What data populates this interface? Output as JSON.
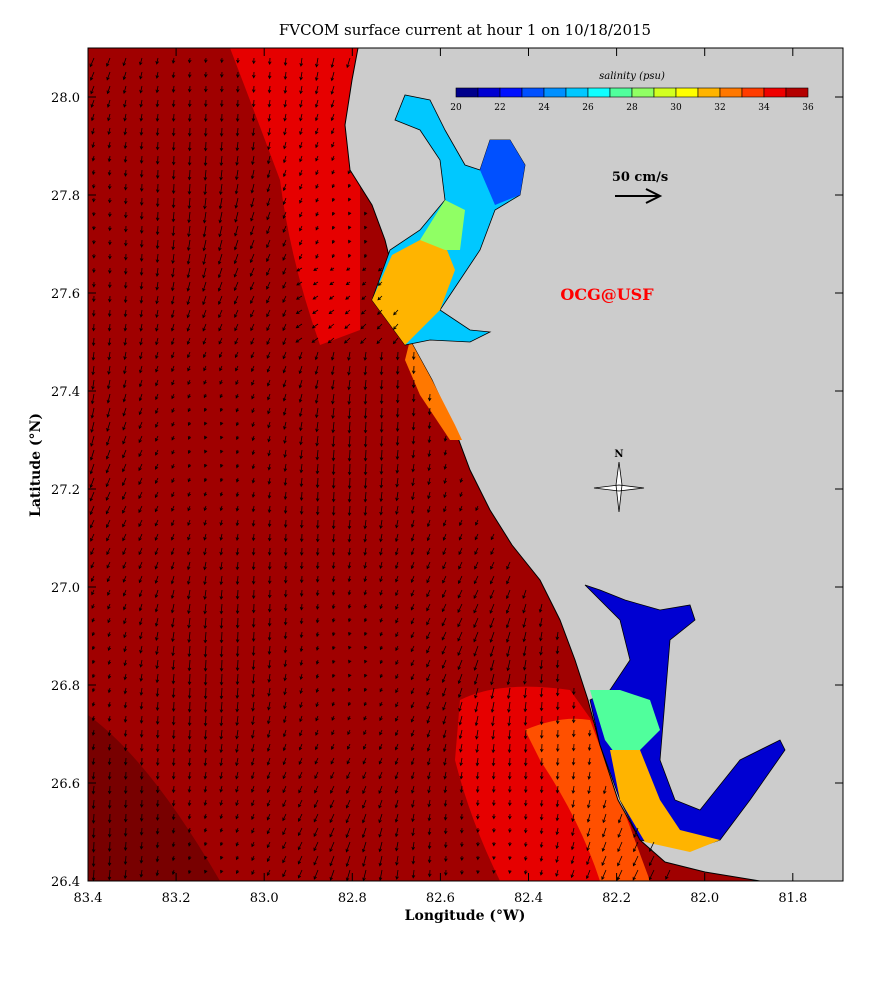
{
  "title": "FVCOM surface current at hour 1 on 10/18/2015",
  "xlabel": "Longitude (°W)",
  "ylabel": "Latitude (°N)",
  "x_ticks": [
    "83.4",
    "83.2",
    "83.0",
    "82.8",
    "82.6",
    "82.4",
    "82.2",
    "82.0",
    "81.8"
  ],
  "y_ticks": [
    "28.0",
    "27.8",
    "27.6",
    "27.4",
    "27.2",
    "27.0",
    "26.8",
    "26.6",
    "26.4"
  ],
  "colorbar": {
    "label": "salinity (psu)",
    "ticks": [
      "20",
      "22",
      "24",
      "26",
      "28",
      "30",
      "32",
      "34",
      "36"
    ],
    "colors": [
      "#00008c",
      "#0000d2",
      "#0010ff",
      "#0050ff",
      "#0090ff",
      "#00c8ff",
      "#10ffff",
      "#50ff9c",
      "#90ff64",
      "#d2ff20",
      "#ffff00",
      "#ffb400",
      "#ff7800",
      "#ff3c00",
      "#f00000",
      "#b40000"
    ]
  },
  "scale_arrow_label": "50 cm/s",
  "watermark": "OCG@USF",
  "north_label": "N",
  "colors": {
    "land": "#cccccc",
    "offshore": "#a00000",
    "nearshore": "#e60000",
    "deep_corner": "#780000"
  }
}
